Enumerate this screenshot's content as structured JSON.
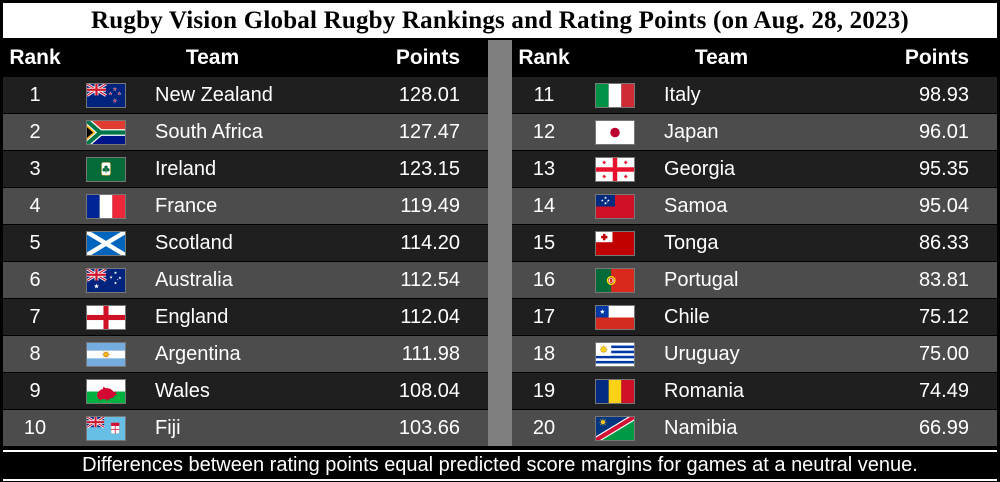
{
  "title": "Rugby Vision Global Rugby Rankings and Rating Points (on Aug. 28, 2023)",
  "footnote": "Differences between rating points equal predicted score margins for games at a neutral venue.",
  "headers": {
    "rank": "Rank",
    "team": "Team",
    "points": "Points"
  },
  "colors": {
    "title_bg": "#ffffff",
    "title_text": "#000000",
    "header_bg": "#000000",
    "row_odd": "#1f1f1f",
    "row_even": "#4c4c4c",
    "gutter": "#7f7f7f",
    "text": "#ffffff",
    "footer_bg": "#000000",
    "footer_text": "#ffffff"
  },
  "tables": [
    {
      "rows": [
        {
          "rank": "1",
          "team": "New Zealand",
          "points": "128.01",
          "flag": "new-zealand"
        },
        {
          "rank": "2",
          "team": "South Africa",
          "points": "127.47",
          "flag": "south-africa"
        },
        {
          "rank": "3",
          "team": "Ireland",
          "points": "123.15",
          "flag": "ireland"
        },
        {
          "rank": "4",
          "team": "France",
          "points": "119.49",
          "flag": "france"
        },
        {
          "rank": "5",
          "team": "Scotland",
          "points": "114.20",
          "flag": "scotland"
        },
        {
          "rank": "6",
          "team": "Australia",
          "points": "112.54",
          "flag": "australia"
        },
        {
          "rank": "7",
          "team": "England",
          "points": "112.04",
          "flag": "england"
        },
        {
          "rank": "8",
          "team": "Argentina",
          "points": "111.98",
          "flag": "argentina"
        },
        {
          "rank": "9",
          "team": "Wales",
          "points": "108.04",
          "flag": "wales"
        },
        {
          "rank": "10",
          "team": "Fiji",
          "points": "103.66",
          "flag": "fiji"
        }
      ]
    },
    {
      "rows": [
        {
          "rank": "11",
          "team": "Italy",
          "points": "98.93",
          "flag": "italy"
        },
        {
          "rank": "12",
          "team": "Japan",
          "points": "96.01",
          "flag": "japan"
        },
        {
          "rank": "13",
          "team": "Georgia",
          "points": "95.35",
          "flag": "georgia"
        },
        {
          "rank": "14",
          "team": "Samoa",
          "points": "95.04",
          "flag": "samoa"
        },
        {
          "rank": "15",
          "team": "Tonga",
          "points": "86.33",
          "flag": "tonga"
        },
        {
          "rank": "16",
          "team": "Portugal",
          "points": "83.81",
          "flag": "portugal"
        },
        {
          "rank": "17",
          "team": "Chile",
          "points": "75.12",
          "flag": "chile"
        },
        {
          "rank": "18",
          "team": "Uruguay",
          "points": "75.00",
          "flag": "uruguay"
        },
        {
          "rank": "19",
          "team": "Romania",
          "points": "74.49",
          "flag": "romania"
        },
        {
          "rank": "20",
          "team": "Namibia",
          "points": "66.99",
          "flag": "namibia"
        }
      ]
    }
  ],
  "chart_data": {
    "type": "table",
    "title": "Rugby Vision Global Rugby Rankings and Rating Points (on Aug. 28, 2023)",
    "columns": [
      "Rank",
      "Team",
      "Points"
    ],
    "rows": [
      [
        1,
        "New Zealand",
        128.01
      ],
      [
        2,
        "South Africa",
        127.47
      ],
      [
        3,
        "Ireland",
        123.15
      ],
      [
        4,
        "France",
        119.49
      ],
      [
        5,
        "Scotland",
        114.2
      ],
      [
        6,
        "Australia",
        112.54
      ],
      [
        7,
        "England",
        112.04
      ],
      [
        8,
        "Argentina",
        111.98
      ],
      [
        9,
        "Wales",
        108.04
      ],
      [
        10,
        "Fiji",
        103.66
      ],
      [
        11,
        "Italy",
        98.93
      ],
      [
        12,
        "Japan",
        96.01
      ],
      [
        13,
        "Georgia",
        95.35
      ],
      [
        14,
        "Samoa",
        95.04
      ],
      [
        15,
        "Tonga",
        86.33
      ],
      [
        16,
        "Portugal",
        83.81
      ],
      [
        17,
        "Chile",
        75.12
      ],
      [
        18,
        "Uruguay",
        75.0
      ],
      [
        19,
        "Romania",
        74.49
      ],
      [
        20,
        "Namibia",
        66.99
      ]
    ],
    "footnote": "Differences between rating points equal predicted score margins for games at a neutral venue."
  }
}
